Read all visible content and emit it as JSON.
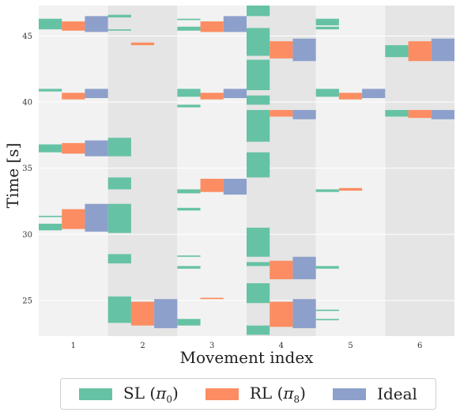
{
  "chart_data": {
    "type": "bar",
    "subtype": "event-raster",
    "xlabel": "Movement index",
    "ylabel": "Time [s]",
    "categories": [
      "1",
      "2",
      "3",
      "4",
      "5",
      "6"
    ],
    "ylim": [
      22.3,
      47.3
    ],
    "yticks": [
      "25",
      "30",
      "35",
      "40",
      "45"
    ],
    "ytick_values": [
      25,
      30,
      35,
      40,
      45
    ],
    "band_shading": [
      "light",
      "dark",
      "light",
      "dark",
      "light",
      "dark"
    ],
    "grid": true,
    "legend_position": "bottom",
    "series": [
      {
        "name": "SL (π₀)",
        "legend_label": "SL (",
        "legend_sym": "π",
        "legend_sub": "0",
        "color": "#66c2a5",
        "events": [
          [
            [
              46.3,
              45.5
            ],
            [
              41.0,
              40.8
            ],
            [
              36.8,
              36.2
            ],
            [
              31.4,
              31.3
            ],
            [
              30.8,
              30.3
            ]
          ],
          [
            [
              46.6,
              46.4
            ],
            [
              45.5,
              45.4
            ],
            [
              37.3,
              35.9
            ],
            [
              34.3,
              33.4
            ],
            [
              32.3,
              30.1
            ],
            [
              28.5,
              27.8
            ],
            [
              25.3,
              23.3
            ]
          ],
          [
            [
              46.3,
              46.2
            ],
            [
              45.7,
              45.4
            ],
            [
              41.0,
              40.4
            ],
            [
              39.8,
              39.6
            ],
            [
              33.4,
              33.1
            ],
            [
              32.0,
              31.8
            ],
            [
              28.4,
              28.3
            ],
            [
              27.6,
              27.4
            ],
            [
              23.6,
              23.1
            ]
          ],
          [
            [
              47.3,
              46.5
            ],
            [
              45.6,
              43.5
            ],
            [
              43.2,
              40.9
            ],
            [
              40.5,
              39.8
            ],
            [
              39.4,
              37.0
            ],
            [
              36.2,
              34.3
            ],
            [
              30.5,
              28.3
            ],
            [
              27.9,
              27.6
            ],
            [
              26.3,
              24.8
            ],
            [
              23.1,
              22.4
            ]
          ],
          [
            [
              46.3,
              45.8
            ],
            [
              45.7,
              45.5
            ],
            [
              41.0,
              40.4
            ],
            [
              33.4,
              33.2
            ],
            [
              27.6,
              27.4
            ],
            [
              24.3,
              24.2
            ],
            [
              23.6,
              23.5
            ]
          ],
          [
            [
              44.3,
              43.4
            ],
            [
              39.4,
              38.9
            ]
          ]
        ]
      },
      {
        "name": "RL (π₈)",
        "legend_label": "RL (",
        "legend_sym": "π",
        "legend_sub": "8",
        "color": "#fc8d62",
        "events": [
          [
            [
              46.1,
              45.4
            ],
            [
              40.7,
              40.2
            ],
            [
              36.9,
              36.1
            ],
            [
              31.9,
              30.4
            ]
          ],
          [
            [
              44.5,
              44.3
            ],
            [
              24.9,
              23.1
            ]
          ],
          [
            [
              46.1,
              45.3
            ],
            [
              40.7,
              40.2
            ],
            [
              34.2,
              33.2
            ],
            [
              25.2,
              25.1
            ]
          ],
          [
            [
              44.6,
              43.3
            ],
            [
              39.4,
              38.9
            ],
            [
              28.0,
              26.6
            ],
            [
              24.9,
              23.0
            ]
          ],
          [
            [
              40.7,
              40.2
            ],
            [
              33.5,
              33.3
            ]
          ],
          [
            [
              44.6,
              43.1
            ],
            [
              39.4,
              38.8
            ]
          ]
        ]
      },
      {
        "name": "Ideal",
        "legend_label": "Ideal",
        "legend_sym": "",
        "legend_sub": "",
        "color": "#8da0cb",
        "events": [
          [
            [
              46.5,
              45.3
            ],
            [
              41.0,
              40.3
            ],
            [
              37.1,
              35.9
            ],
            [
              32.3,
              30.2
            ]
          ],
          [
            [
              25.1,
              22.9
            ]
          ],
          [
            [
              46.5,
              45.3
            ],
            [
              41.0,
              40.3
            ],
            [
              34.2,
              33.0
            ]
          ],
          [
            [
              44.8,
              43.1
            ],
            [
              39.4,
              38.7
            ],
            [
              28.3,
              26.6
            ],
            [
              25.1,
              22.9
            ]
          ],
          [
            [
              41.0,
              40.3
            ]
          ],
          [
            [
              44.8,
              43.1
            ],
            [
              39.4,
              38.7
            ]
          ]
        ]
      }
    ]
  }
}
